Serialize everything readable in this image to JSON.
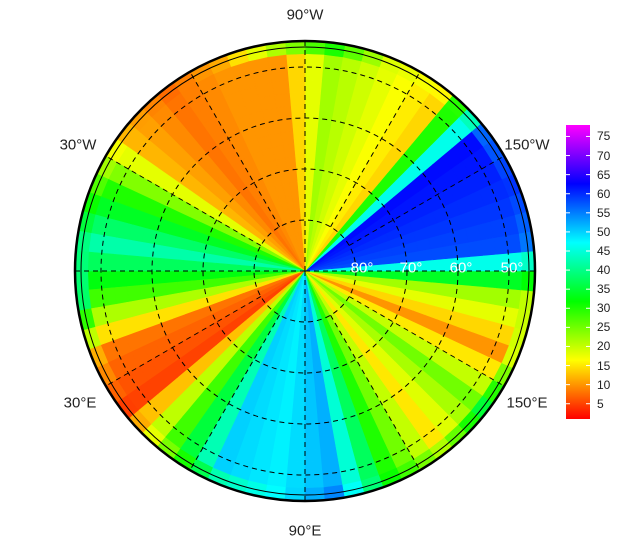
{
  "map": {
    "lon_labels": {
      "top": "90°W",
      "upper_left": "30°W",
      "upper_right": "150°W",
      "lower_left": "30°E",
      "lower_right": "150°E",
      "bottom": "90°E"
    },
    "lat_labels": [
      "80°",
      "70°",
      "60°",
      "50°"
    ]
  },
  "colorbar": {
    "ticks": [
      "5",
      "10",
      "15",
      "20",
      "25",
      "30",
      "35",
      "40",
      "45",
      "50",
      "55",
      "60",
      "65",
      "70",
      "75"
    ],
    "range": [
      1,
      78
    ],
    "colormap": "rainbow red-to-magenta"
  },
  "chart_data": {
    "type": "heatmap",
    "projection": "north polar",
    "lat_centers": [
      47.5,
      52.5,
      57.5,
      62.5,
      67.5,
      72.5,
      77.5,
      82.5,
      87.5
    ],
    "lon_centers": [
      7.5,
      22.5,
      37.5,
      52.5,
      67.5,
      82.5,
      97.5,
      112.5,
      127.5,
      142.5,
      157.5,
      172.5,
      187.5,
      202.5,
      217.5,
      232.5,
      247.5,
      262.5,
      277.5,
      292.5,
      307.5,
      322.5,
      337.5,
      352.5
    ],
    "values": [
      [
        28,
        8,
        5,
        28,
        50,
        48,
        52,
        30,
        15,
        25,
        10,
        22,
        58,
        60,
        62,
        14,
        18,
        22,
        10,
        10,
        8,
        12,
        30,
        42
      ],
      [
        68,
        22,
        4,
        14,
        20,
        45,
        62,
        35,
        40,
        65,
        45,
        15,
        48,
        58,
        40,
        22,
        20,
        55,
        55,
        15,
        6,
        12,
        18,
        32
      ],
      [
        50,
        10,
        8,
        18,
        10,
        20,
        22,
        25,
        50,
        72,
        68,
        22,
        30,
        20,
        18,
        25,
        40,
        72,
        66,
        32,
        16,
        12,
        10,
        16
      ],
      [
        10,
        14,
        24,
        30,
        50,
        15,
        18,
        33,
        60,
        75,
        62,
        30,
        25,
        45,
        10,
        32,
        62,
        72,
        60,
        35,
        25,
        16,
        10,
        5
      ],
      [
        30,
        25,
        30,
        32,
        32,
        38,
        40,
        28,
        55,
        72,
        62,
        60,
        45,
        25,
        30,
        60,
        48,
        45,
        8,
        5,
        8,
        6,
        6,
        15
      ],
      [
        52,
        32,
        30,
        28,
        30,
        30,
        40,
        35,
        55,
        62,
        62,
        48,
        52,
        45,
        55,
        65,
        55,
        8,
        6,
        5,
        6,
        5,
        30,
        40
      ],
      [
        32,
        30,
        28,
        30,
        35,
        38,
        40,
        42,
        50,
        55,
        58,
        52,
        45,
        42,
        45,
        72,
        30,
        10,
        6,
        8,
        25,
        30,
        22,
        35
      ],
      [
        40,
        38,
        35,
        35,
        38,
        40,
        42,
        45,
        48,
        50,
        50,
        48,
        45,
        42,
        45,
        50,
        40,
        30,
        20,
        15,
        25,
        30,
        35,
        40
      ],
      [
        38,
        40,
        42,
        45,
        45,
        42,
        40,
        38,
        35,
        30,
        28,
        25,
        30,
        35,
        40,
        45,
        42,
        38,
        30,
        25,
        22,
        28,
        32,
        36
      ]
    ],
    "graticule_lats": [
      50,
      60,
      70,
      80
    ],
    "graticule_lon_step": 30,
    "lat_extent": [
      45,
      90
    ]
  }
}
